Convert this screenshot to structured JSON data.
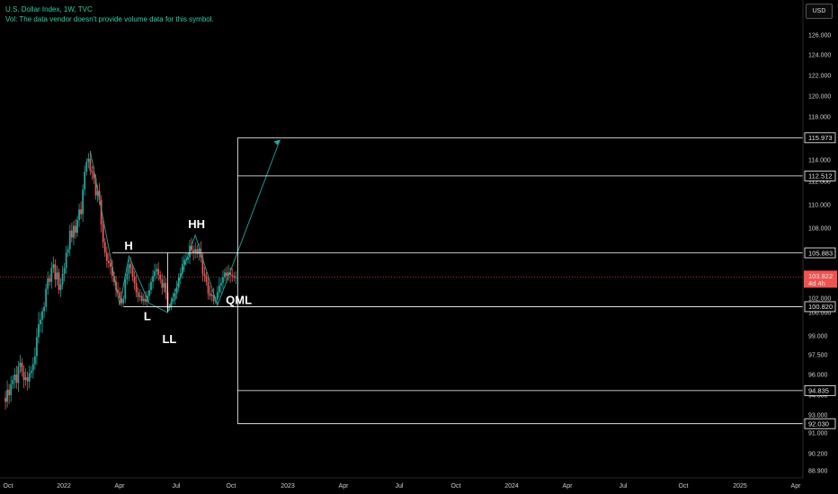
{
  "legend": {
    "symbol_line": "U.S. Dollar Index, 1W, TVC",
    "volume_note": "Vol: The data vendor doesn't provide volume data for this symbol."
  },
  "currency": "USD",
  "colors": {
    "up": "#26a69a",
    "down": "#ef5350",
    "pattern": "#26a69a",
    "levels": "#ffffff",
    "current_price": "#ef5350"
  },
  "chart_data": {
    "type": "candlestick",
    "y_ticks": [
      "126.000",
      "124.000",
      "122.000",
      "120.000",
      "118.000",
      "116.000",
      "114.000",
      "112.000",
      "110.000",
      "108.000",
      "106.000",
      "104.000",
      "102.000",
      "100.000",
      "99.000",
      "97.500",
      "96.000",
      "94.500",
      "93.000",
      "91.000",
      "90.200",
      "88.900"
    ],
    "x_ticks": [
      "Oct",
      "2022",
      "Apr",
      "Jul",
      "Oct",
      "2023",
      "Apr",
      "Jul",
      "Oct",
      "2024",
      "Apr",
      "Jul",
      "Oct",
      "2025",
      "Apr"
    ],
    "levels": [
      {
        "label": "115.973"
      },
      {
        "label": "112.512"
      },
      {
        "label": "105.883"
      },
      {
        "label": "100.820"
      },
      {
        "label": "94.835"
      },
      {
        "label": "92.030"
      }
    ],
    "current_price": {
      "value": "103.822",
      "countdown": "4d 4h"
    },
    "annotations": [
      "H",
      "L",
      "LL",
      "HH",
      "QML"
    ],
    "prices": [
      94.3,
      94.0,
      94.9,
      94.5,
      95.3,
      95.6,
      96.0,
      95.4,
      96.6,
      96.9,
      96.2,
      95.6,
      95.8,
      95.5,
      96.1,
      96.3,
      96.8,
      97.4,
      98.9,
      99.5,
      99.7,
      100.2,
      100.8,
      102.8,
      103.7,
      103.4,
      104.6,
      104.9,
      103.6,
      104.2,
      102.7,
      103.2,
      104.1,
      104.6,
      105.9,
      106.2,
      107.8,
      107.2,
      108.2,
      107.6,
      108.7,
      109.6,
      109.2,
      111.3,
      112.9,
      113.8,
      114.1,
      113.0,
      112.8,
      112.3,
      110.8,
      111.2,
      110.4,
      108.3,
      106.8,
      105.9,
      105.2,
      105.0,
      104.7,
      103.9,
      103.4,
      102.7,
      102.5,
      102.0,
      101.3,
      101.9,
      103.6,
      104.1,
      104.9,
      104.6,
      103.8,
      103.3,
      102.5,
      102.1,
      102.2,
      101.6,
      101.9,
      101.5,
      102.2,
      102.7,
      103.4,
      103.9,
      104.3,
      104.5,
      104.0,
      103.6,
      102.9,
      103.3,
      102.5,
      100.6,
      100.9,
      101.6,
      101.8,
      102.4,
      102.9,
      103.8,
      104.1,
      104.9,
      105.3,
      105.3,
      105.5,
      106.5,
      106.1,
      105.9,
      106.2,
      105.8,
      106.2,
      105.5,
      104.1,
      103.9,
      103.4,
      102.4,
      102.2,
      102.3,
      101.6,
      101.8,
      102.5,
      103.1,
      103.3,
      103.8,
      104.2,
      103.9,
      104.2,
      104.0,
      103.9,
      103.8,
      103.8
    ],
    "pattern_points": [
      {
        "t": 47,
        "p": 114.8
      },
      {
        "t": 63,
        "p": 101.0
      },
      {
        "t": 68,
        "p": 105.6
      },
      {
        "t": 79,
        "p": 101.3
      },
      {
        "t": 89,
        "p": 100.0
      },
      {
        "t": 104,
        "p": 107.4
      },
      {
        "t": 116,
        "p": 101.0
      },
      {
        "t": 123,
        "p": 104.3
      },
      {
        "t": 150,
        "p": 115.8
      }
    ]
  }
}
